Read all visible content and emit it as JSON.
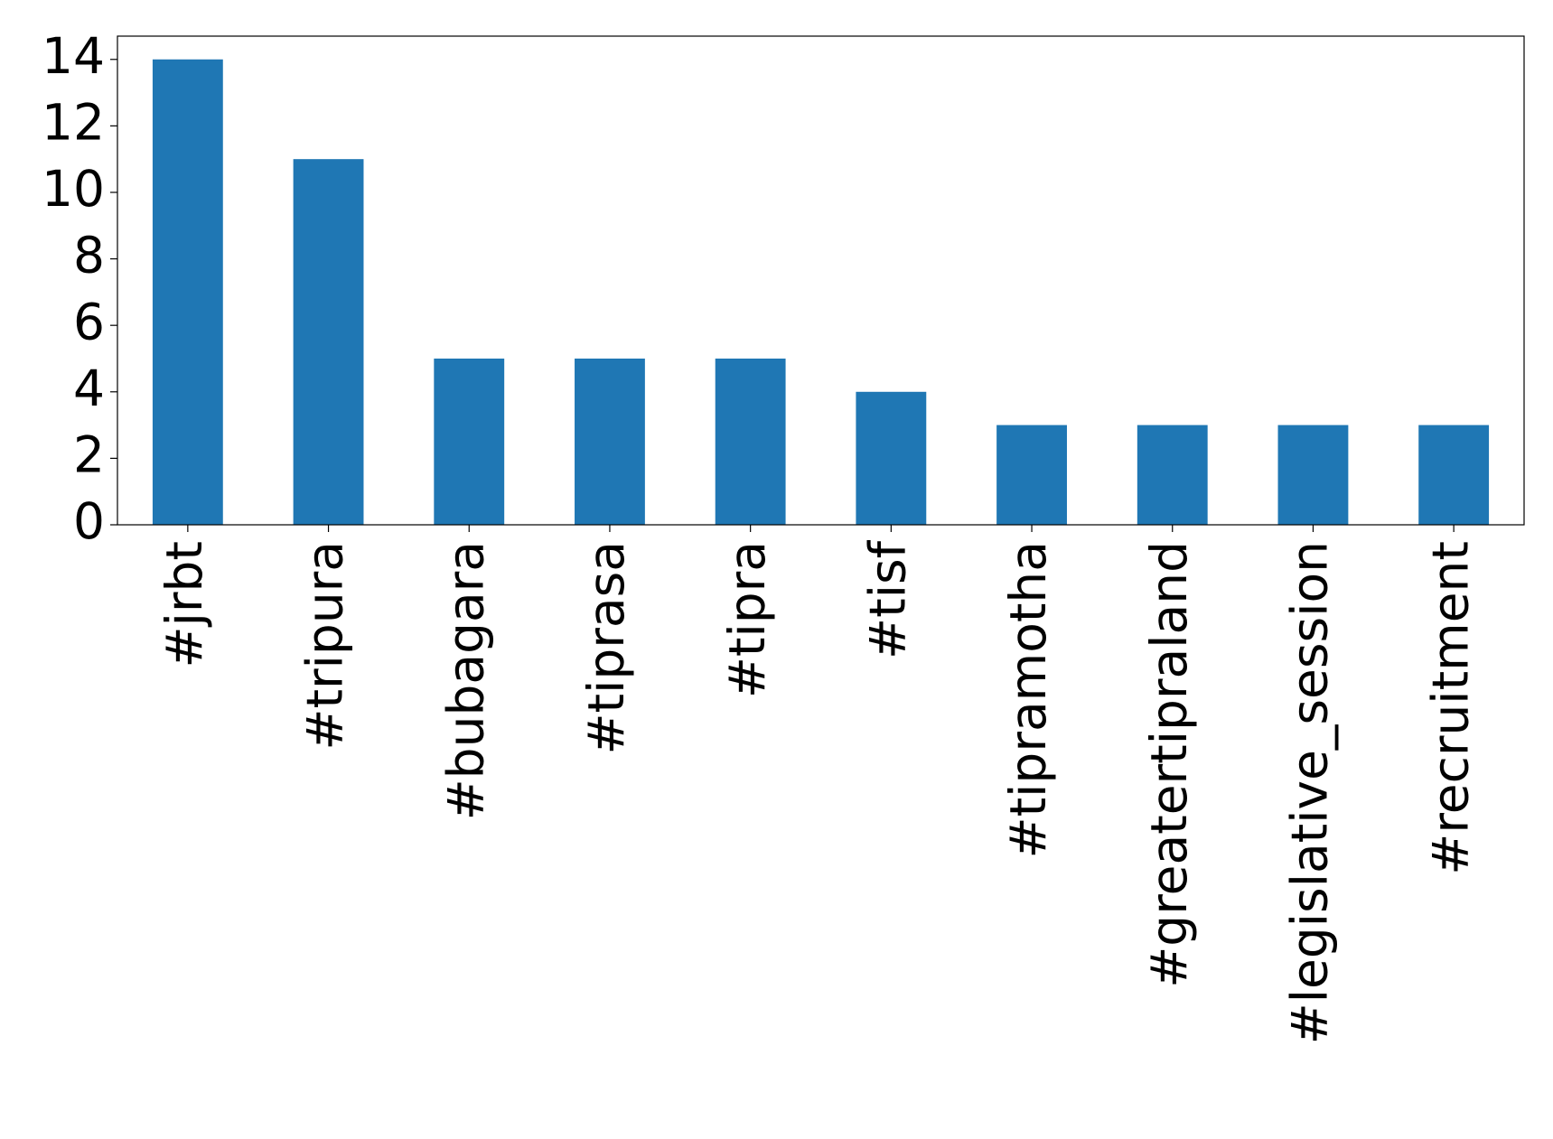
{
  "chart_data": {
    "type": "bar",
    "categories": [
      "#jrbt",
      "#tripura",
      "#bubagara",
      "#tiprasa",
      "#tipra",
      "#tisf",
      "#tipramotha",
      "#greatertipraland",
      "#legislative_session",
      "#recruitment"
    ],
    "values": [
      14,
      11,
      5,
      5,
      5,
      4,
      3,
      3,
      3,
      3
    ],
    "color": "#1f77b4",
    "ylim": [
      0,
      14.7
    ],
    "yticks": [
      0,
      2,
      4,
      6,
      8,
      10,
      12,
      14
    ],
    "grid": false
  }
}
